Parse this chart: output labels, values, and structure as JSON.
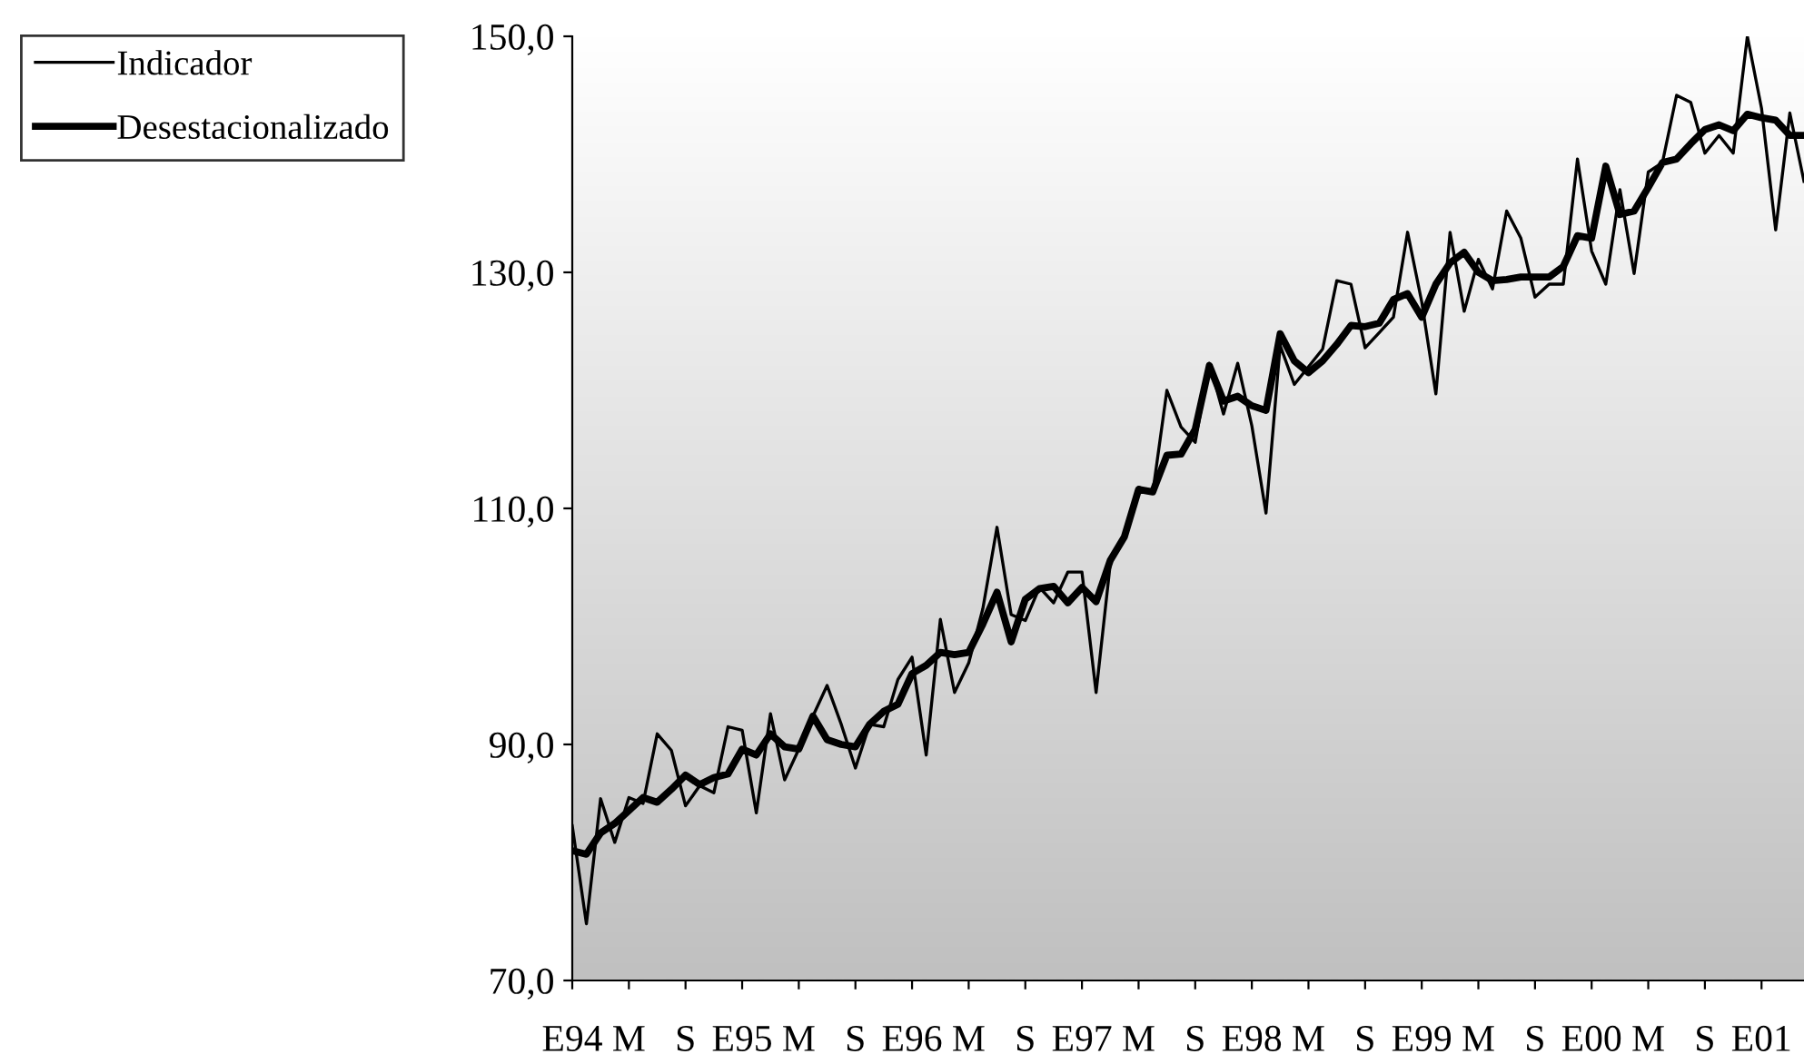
{
  "chart_data": {
    "type": "line",
    "categories": [
      "E94",
      null,
      null,
      null,
      "M",
      null,
      null,
      null,
      "S",
      null,
      null,
      null,
      "E95",
      null,
      null,
      null,
      "M",
      null,
      null,
      null,
      "S",
      null,
      null,
      null,
      "E96",
      null,
      null,
      null,
      "M",
      null,
      null,
      null,
      "S",
      null,
      null,
      null,
      "E97",
      null,
      null,
      null,
      "M",
      null,
      null,
      null,
      "S",
      null,
      null,
      null,
      "E98",
      null,
      null,
      null,
      "M",
      null,
      null,
      null,
      "S",
      null,
      null,
      null,
      "E99",
      null,
      null,
      null,
      "M",
      null,
      null,
      null,
      "S",
      null,
      null,
      null,
      "E00",
      null,
      null,
      null,
      "M",
      null,
      null,
      null,
      "S",
      null,
      null,
      null,
      "E01",
      null,
      null,
      null
    ],
    "series": [
      {
        "name": "Indicador",
        "color": "#000000",
        "values": [
          83.1,
          74.8,
          85.4,
          81.7,
          85.5,
          85.0,
          90.9,
          89.5,
          84.8,
          86.5,
          85.9,
          91.5,
          91.2,
          84.2,
          92.6,
          87.0,
          89.6,
          92.4,
          95.0,
          91.7,
          88.0,
          91.7,
          91.5,
          95.5,
          97.4,
          89.1,
          100.6,
          94.4,
          96.9,
          101.5,
          108.4,
          101.0,
          100.5,
          103.3,
          102.0,
          104.6,
          104.6,
          94.4,
          105.3,
          107.6,
          111.8,
          111.3,
          120.0,
          116.9,
          115.6,
          122.3,
          118.0,
          122.3,
          117.0,
          109.6,
          123.8,
          120.5,
          122.0,
          123.5,
          129.3,
          129.0,
          123.6,
          124.9,
          126.2,
          133.4,
          127.5,
          119.7,
          133.4,
          126.7,
          131.1,
          128.6,
          135.2,
          132.9,
          127.9,
          129.0,
          129.0,
          139.6,
          131.8,
          129.0,
          137.0,
          129.9,
          138.5,
          139.3,
          145.0,
          144.4,
          140.1,
          141.6,
          140.1,
          150.0,
          143.9,
          133.6,
          143.5,
          137.7
        ]
      },
      {
        "name": "Desestacionalizado",
        "color": "#000000",
        "values": [
          81.0,
          80.7,
          82.5,
          83.3,
          84.4,
          85.5,
          85.1,
          86.2,
          87.4,
          86.6,
          87.2,
          87.5,
          89.6,
          89.1,
          90.9,
          89.8,
          89.6,
          92.4,
          90.4,
          90.0,
          89.8,
          91.7,
          92.8,
          93.4,
          96.0,
          96.7,
          97.8,
          97.6,
          97.8,
          100.2,
          102.9,
          98.7,
          102.3,
          103.2,
          103.4,
          102.0,
          103.3,
          102.1,
          105.6,
          107.6,
          111.6,
          111.4,
          114.5,
          114.6,
          116.7,
          122.1,
          119.1,
          119.5,
          118.7,
          118.3,
          124.8,
          122.5,
          121.5,
          122.5,
          123.9,
          125.5,
          125.4,
          125.7,
          127.7,
          128.2,
          126.2,
          129.0,
          130.8,
          131.7,
          130.0,
          129.3,
          129.4,
          129.6,
          129.6,
          129.6,
          130.5,
          133.1,
          132.9,
          139.0,
          134.9,
          135.2,
          137.2,
          139.3,
          139.6,
          140.9,
          142.1,
          142.5,
          142.0,
          143.4,
          143.1,
          142.9,
          141.6,
          141.6
        ]
      }
    ],
    "ylim": [
      70,
      150
    ],
    "yticks": [
      {
        "value": 70,
        "label": "70,0"
      },
      {
        "value": 90,
        "label": "90,0"
      },
      {
        "value": 110,
        "label": "110,0"
      },
      {
        "value": 130,
        "label": "130,0"
      },
      {
        "value": 150,
        "label": "150,0"
      }
    ],
    "grid": false,
    "legend": "top left",
    "marker": "none",
    "line_style": "solid"
  }
}
